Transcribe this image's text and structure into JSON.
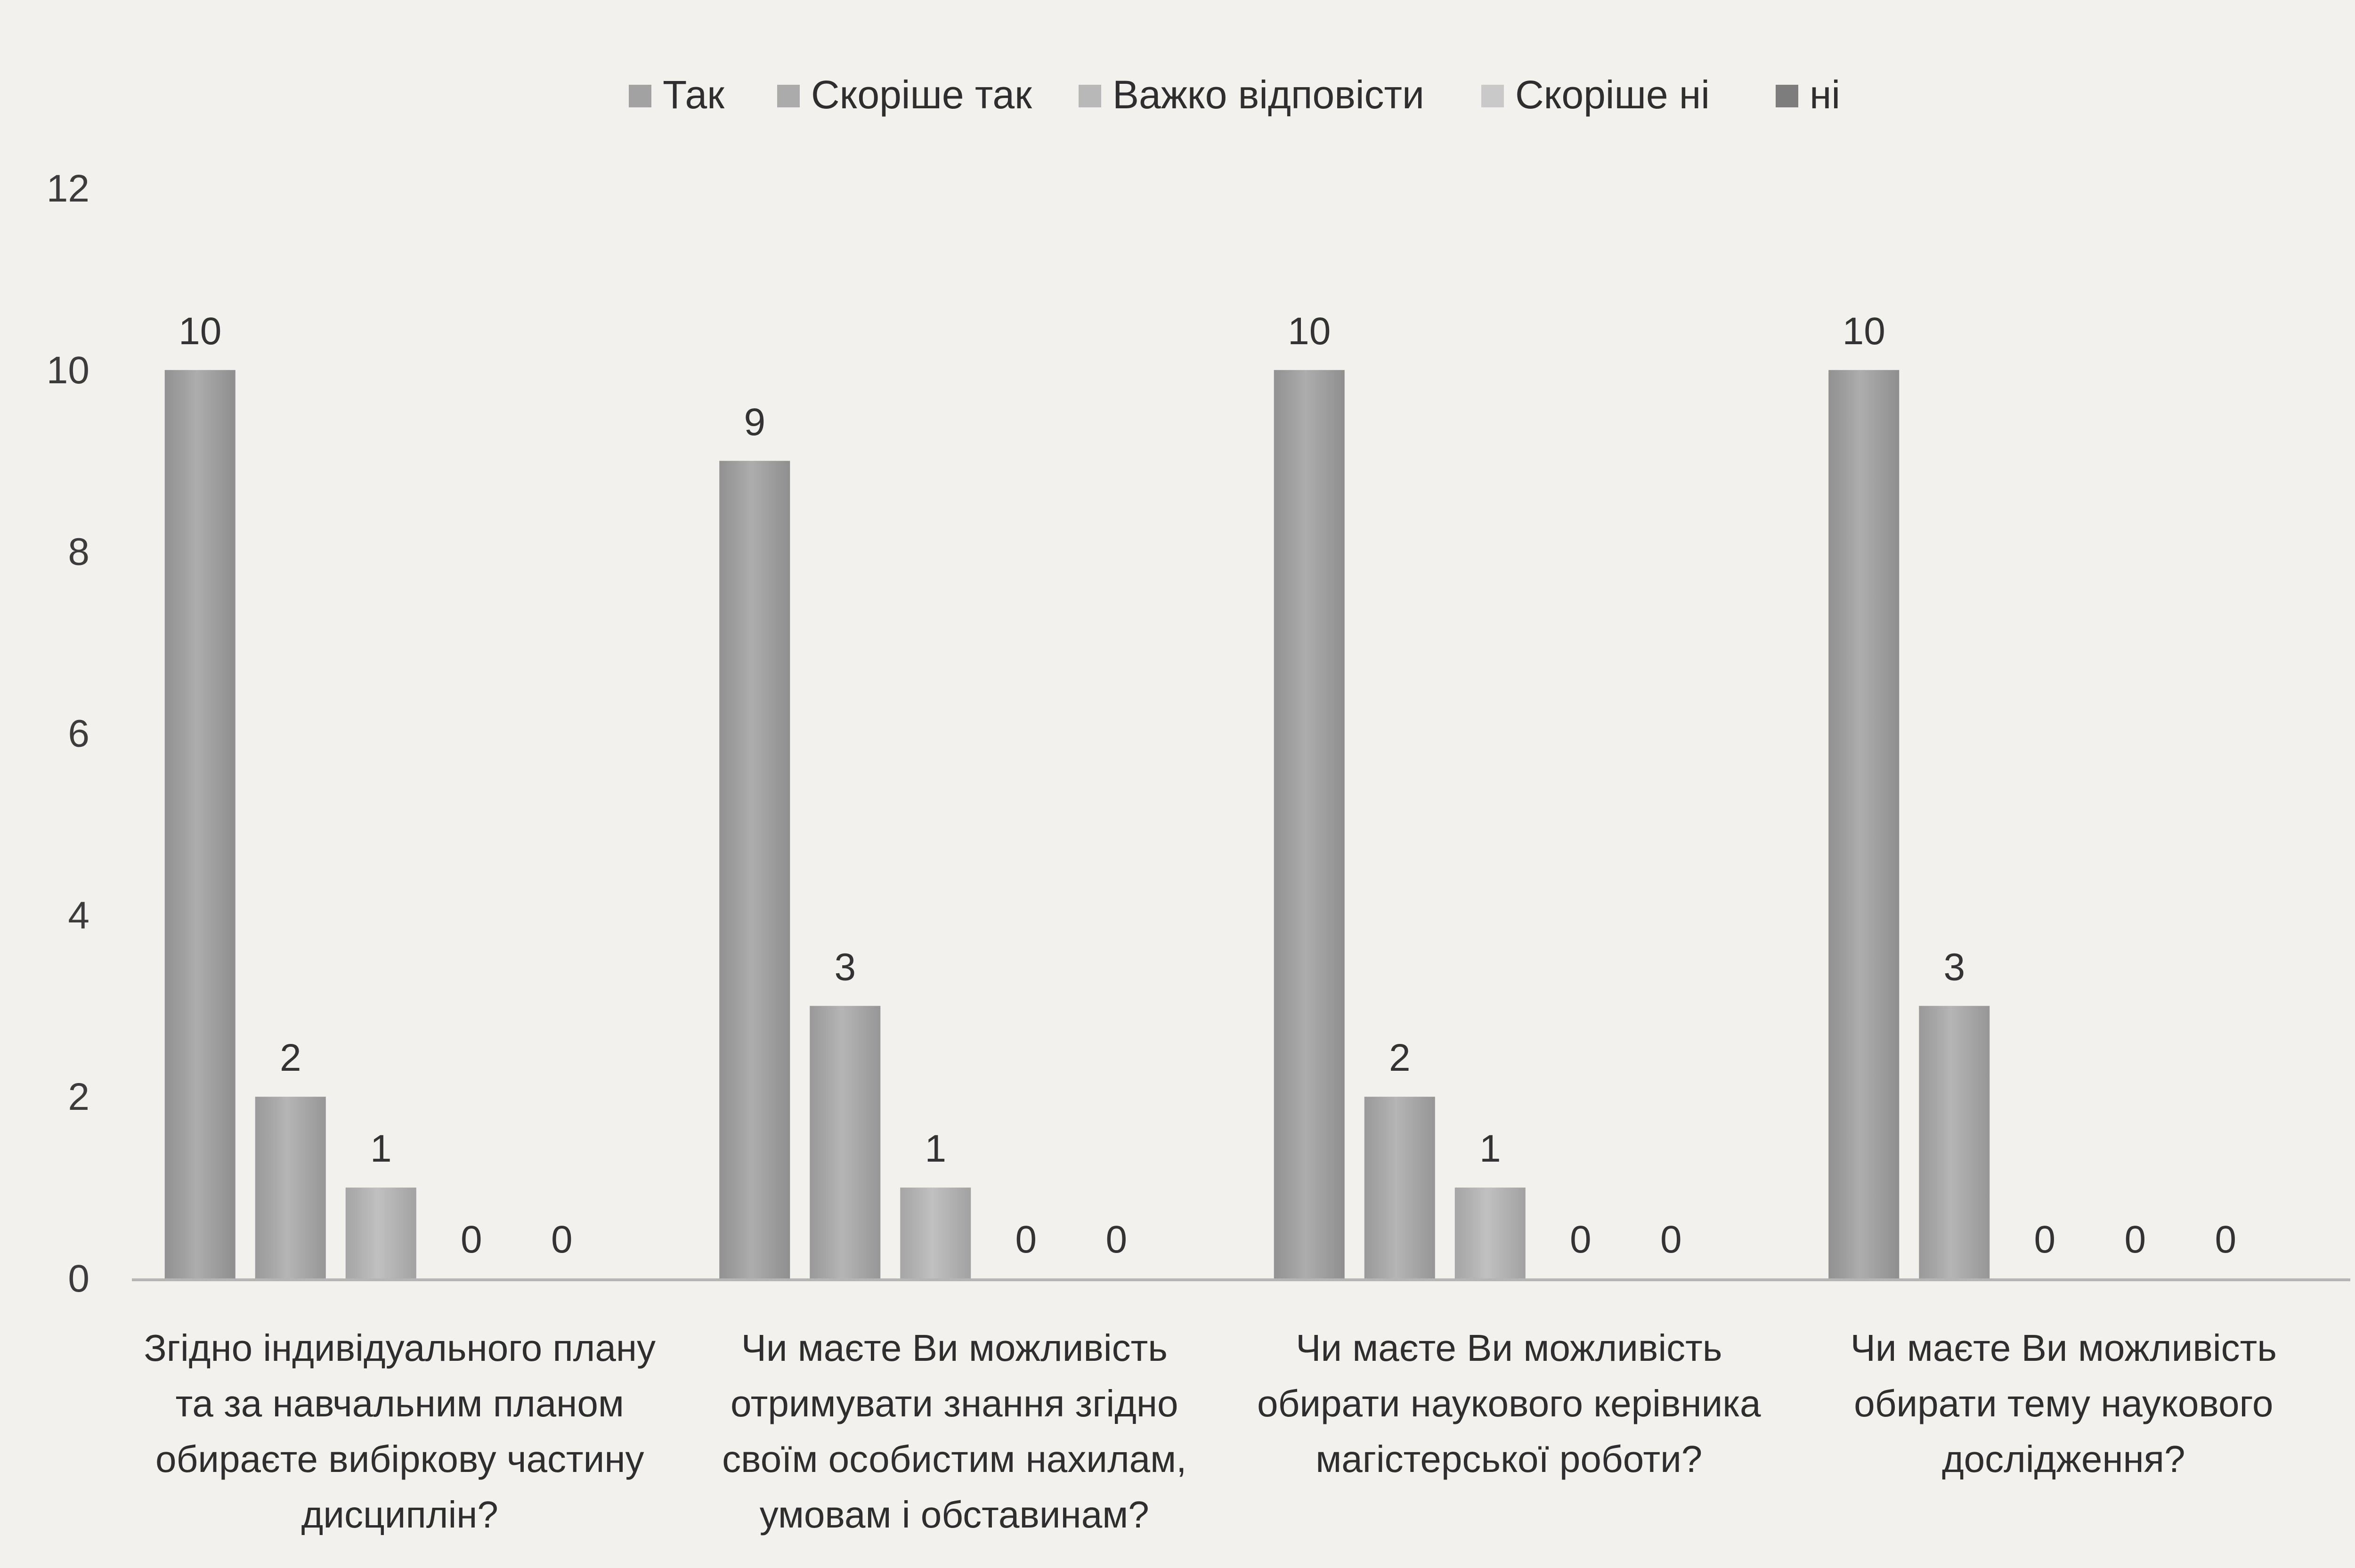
{
  "chart_data": {
    "type": "bar",
    "title": "",
    "xlabel": "",
    "ylabel": "",
    "ylim": [
      0,
      12
    ],
    "yticks": [
      0,
      2,
      4,
      6,
      8,
      10,
      12
    ],
    "grid": false,
    "legend_position": "top-center",
    "categories": [
      "Згідно індивідуального плану та за навчальним планом обираєте вибіркову частину дисциплін?",
      "Чи маєте Ви можливість отримувати знання згідно своїм особистим нахилам, умовам і обставинам?",
      "Чи маєте Ви можливість обирати наукового керівника магістерської роботи?",
      "Чи маєте Ви можливість обирати тему наукового дослідження?"
    ],
    "category_lines": [
      [
        "Згідно індивідуального плану",
        "та за навчальним планом",
        "обираєте вибіркову частину",
        "дисциплін?"
      ],
      [
        "Чи маєте Ви можливість",
        "отримувати знання згідно",
        "своїм особистим нахилам,",
        "умовам і обставинам?"
      ],
      [
        "Чи маєте Ви можливість",
        "обирати наукового керівника",
        "магістерської роботи?"
      ],
      [
        "Чи маєте Ви можливість",
        "обирати тему наукового",
        "дослідження?"
      ]
    ],
    "series": [
      {
        "name": "Так",
        "values": [
          10,
          9,
          10,
          10
        ],
        "color": "#a2a2a2"
      },
      {
        "name": "Скоріше так",
        "values": [
          2,
          3,
          2,
          3
        ],
        "color": "#ababab"
      },
      {
        "name": "Важко відповісти",
        "values": [
          1,
          1,
          1,
          0
        ],
        "color": "#b8b8b8"
      },
      {
        "name": "Скоріше ні",
        "values": [
          0,
          0,
          0,
          0
        ],
        "color": "#c9c9c9"
      },
      {
        "name": "ні",
        "values": [
          0,
          0,
          0,
          0
        ],
        "color": "#7d7d7d"
      }
    ]
  }
}
